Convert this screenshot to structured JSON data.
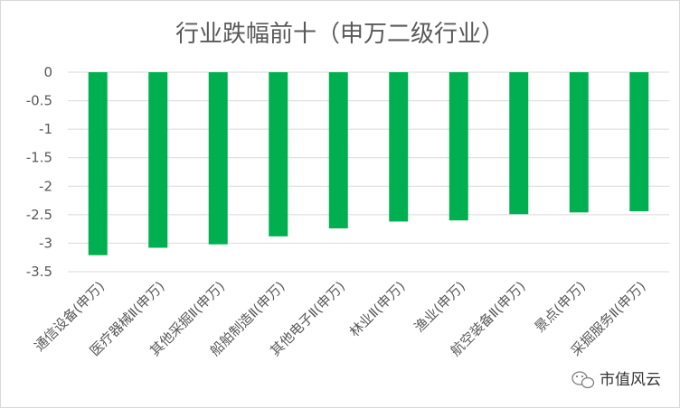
{
  "chart_data": {
    "type": "bar",
    "title": "行业跌幅前十（申万二级行业）",
    "categories": [
      "通信设备(申万)",
      "医疗器械Ⅱ(申万)",
      "其他采掘Ⅱ(申万)",
      "船舶制造Ⅱ(申万)",
      "其他电子Ⅱ(申万)",
      "林业Ⅱ(申万)",
      "渔业(申万)",
      "航空装备Ⅱ(申万)",
      "景点(申万)",
      "采掘服务Ⅱ(申万)"
    ],
    "values": [
      -3.21,
      -3.08,
      -3.02,
      -2.88,
      -2.74,
      -2.62,
      -2.6,
      -2.49,
      -2.46,
      -2.44
    ],
    "ylim": [
      -3.5,
      0
    ],
    "yticks": [
      "0",
      "-0.5",
      "-1",
      "-1.5",
      "-2",
      "-2.5",
      "-3",
      "-3.5"
    ],
    "grid": true,
    "colors": {
      "bar": "#00b050",
      "grid": "#d9d9d9",
      "text": "#595959"
    }
  },
  "watermark": {
    "text": "市值风云",
    "icon": "wechat-icon"
  }
}
